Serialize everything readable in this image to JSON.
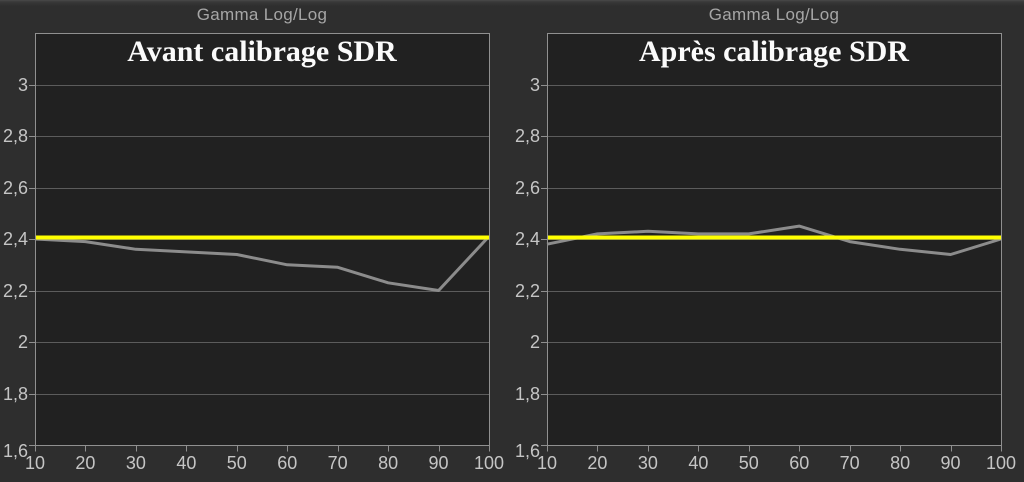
{
  "colors": {
    "page_bg": "#2e2e2e",
    "plot_bg": "#212121",
    "plot_border": "#909090",
    "gridline": "#5c5c5c",
    "tick": "#8f8f8f",
    "tick_label": "#c5c5c5",
    "type_label": "#a6a6a6",
    "title": "#fbfbfb",
    "series_line": "#8c8c8c",
    "reference": "#ffff00"
  },
  "chart_data": [
    {
      "type": "line",
      "top_label": "Gamma Log/Log",
      "title": "Avant calibrage SDR",
      "xlabel": "",
      "ylabel": "",
      "xlim": [
        10,
        100
      ],
      "ylim": [
        1.6,
        3.2
      ],
      "x": [
        10,
        20,
        30,
        40,
        50,
        60,
        70,
        80,
        90,
        100
      ],
      "x_tick_labels": [
        "10",
        "20",
        "30",
        "40",
        "50",
        "60",
        "70",
        "80",
        "90",
        "100"
      ],
      "y_ticks": [
        1.6,
        1.8,
        2.0,
        2.2,
        2.4,
        2.6,
        2.8,
        3.0
      ],
      "y_tick_labels": [
        "1,6",
        "1,8",
        "2",
        "2,2",
        "2,4",
        "2,6",
        "2,8",
        "3"
      ],
      "grid": "horizontal",
      "legend": "none",
      "series": [
        {
          "name": "gamma",
          "color": "#8c8c8c",
          "values": [
            2.4,
            2.39,
            2.36,
            2.35,
            2.34,
            2.3,
            2.29,
            2.23,
            2.2,
            2.41
          ]
        }
      ],
      "reference_line": {
        "value": 2.4,
        "color": "#ffff00"
      }
    },
    {
      "type": "line",
      "top_label": "Gamma Log/Log",
      "title": "Après calibrage SDR",
      "xlabel": "",
      "ylabel": "",
      "xlim": [
        10,
        100
      ],
      "ylim": [
        1.6,
        3.2
      ],
      "x": [
        10,
        20,
        30,
        40,
        50,
        60,
        70,
        80,
        90,
        100
      ],
      "x_tick_labels": [
        "10",
        "20",
        "30",
        "40",
        "50",
        "60",
        "70",
        "80",
        "90",
        "100"
      ],
      "y_ticks": [
        1.6,
        1.8,
        2.0,
        2.2,
        2.4,
        2.6,
        2.8,
        3.0
      ],
      "y_tick_labels": [
        "1,6",
        "1,8",
        "2",
        "2,2",
        "2,4",
        "2,6",
        "2,8",
        "3"
      ],
      "grid": "horizontal",
      "legend": "none",
      "series": [
        {
          "name": "gamma",
          "color": "#8c8c8c",
          "values": [
            2.38,
            2.42,
            2.43,
            2.42,
            2.42,
            2.45,
            2.39,
            2.36,
            2.34,
            2.4
          ]
        }
      ],
      "reference_line": {
        "value": 2.4,
        "color": "#ffff00"
      }
    }
  ]
}
